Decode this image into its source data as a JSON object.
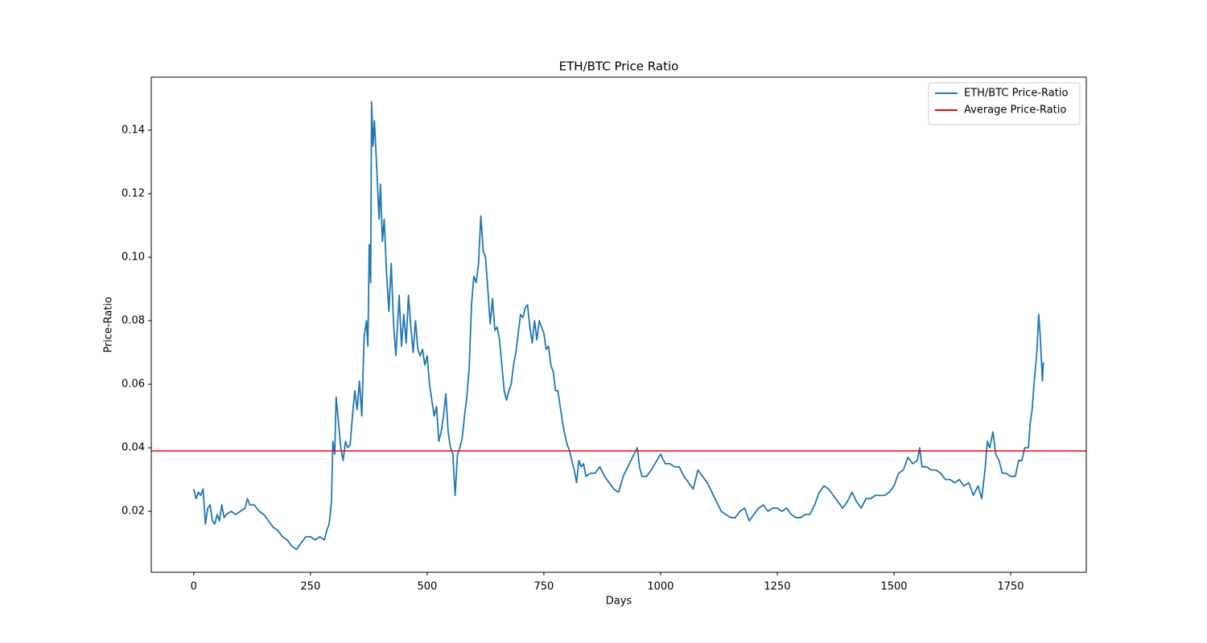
{
  "chart_data": {
    "type": "line",
    "title": "ETH/BTC Price Ratio",
    "x_label": "Days",
    "y_label": "Price-Ratio",
    "xlim": [
      -91,
      1912
    ],
    "ylim": [
      0.0008,
      0.1567
    ],
    "xticks": [
      0,
      250,
      500,
      750,
      1000,
      1250,
      1500,
      1750
    ],
    "yticks": [
      0.02,
      0.04,
      0.06,
      0.08,
      {
        "value": 0.1,
        "label": "0.10"
      },
      0.12,
      0.14
    ],
    "legend": "upper right",
    "series": [
      {
        "name": "ETH/BTC Price-Ratio",
        "color": "#1f77b4",
        "x": [
          0,
          5,
          10,
          15,
          20,
          25,
          30,
          35,
          40,
          45,
          50,
          55,
          60,
          65,
          70,
          80,
          90,
          100,
          110,
          115,
          120,
          130,
          140,
          150,
          160,
          170,
          180,
          190,
          200,
          210,
          220,
          230,
          240,
          250,
          260,
          270,
          280,
          285,
          290,
          295,
          298,
          302,
          305,
          310,
          315,
          320,
          325,
          330,
          335,
          340,
          345,
          350,
          355,
          360,
          365,
          370,
          373,
          376,
          379,
          381,
          384,
          387,
          392,
          397,
          400,
          404,
          408,
          413,
          418,
          423,
          428,
          433,
          440,
          445,
          450,
          455,
          460,
          465,
          470,
          475,
          480,
          485,
          490,
          495,
          500,
          505,
          510,
          515,
          520,
          525,
          530,
          535,
          540,
          545,
          550,
          555,
          560,
          565,
          570,
          575,
          580,
          585,
          590,
          595,
          600,
          605,
          610,
          615,
          620,
          625,
          630,
          635,
          640,
          645,
          650,
          655,
          660,
          665,
          670,
          675,
          680,
          685,
          690,
          695,
          700,
          705,
          710,
          715,
          720,
          725,
          730,
          735,
          740,
          745,
          750,
          755,
          760,
          765,
          770,
          775,
          780,
          785,
          790,
          795,
          800,
          805,
          810,
          815,
          820,
          825,
          830,
          835,
          840,
          850,
          860,
          870,
          880,
          890,
          900,
          910,
          920,
          930,
          940,
          950,
          955,
          960,
          970,
          980,
          1000,
          1010,
          1020,
          1030,
          1040,
          1050,
          1060,
          1070,
          1080,
          1090,
          1100,
          1110,
          1120,
          1130,
          1140,
          1150,
          1160,
          1170,
          1180,
          1190,
          1200,
          1210,
          1220,
          1230,
          1240,
          1250,
          1260,
          1270,
          1280,
          1290,
          1300,
          1310,
          1320,
          1330,
          1340,
          1350,
          1360,
          1370,
          1380,
          1390,
          1400,
          1410,
          1420,
          1430,
          1440,
          1450,
          1460,
          1470,
          1480,
          1490,
          1500,
          1510,
          1520,
          1530,
          1540,
          1550,
          1555,
          1560,
          1570,
          1580,
          1590,
          1600,
          1610,
          1620,
          1630,
          1640,
          1650,
          1660,
          1670,
          1680,
          1688,
          1695,
          1700,
          1705,
          1712,
          1718,
          1725,
          1732,
          1740,
          1750,
          1760,
          1767,
          1774,
          1780,
          1788,
          1792,
          1796,
          1800,
          1803,
          1806,
          1810,
          1813,
          1815,
          1818,
          1820
        ],
        "values": [
          0.027,
          0.024,
          0.026,
          0.025,
          0.027,
          0.016,
          0.021,
          0.022,
          0.017,
          0.016,
          0.019,
          0.017,
          0.022,
          0.018,
          0.019,
          0.02,
          0.019,
          0.02,
          0.021,
          0.024,
          0.022,
          0.022,
          0.02,
          0.019,
          0.017,
          0.015,
          0.014,
          0.012,
          0.011,
          0.009,
          0.008,
          0.01,
          0.012,
          0.012,
          0.011,
          0.012,
          0.011,
          0.014,
          0.016,
          0.023,
          0.042,
          0.038,
          0.056,
          0.048,
          0.04,
          0.036,
          0.042,
          0.04,
          0.041,
          0.05,
          0.058,
          0.052,
          0.061,
          0.05,
          0.075,
          0.08,
          0.072,
          0.104,
          0.092,
          0.149,
          0.135,
          0.143,
          0.128,
          0.112,
          0.123,
          0.105,
          0.112,
          0.095,
          0.083,
          0.098,
          0.079,
          0.069,
          0.088,
          0.072,
          0.082,
          0.073,
          0.088,
          0.078,
          0.07,
          0.08,
          0.071,
          0.069,
          0.071,
          0.066,
          0.069,
          0.06,
          0.055,
          0.05,
          0.053,
          0.042,
          0.045,
          0.05,
          0.057,
          0.045,
          0.04,
          0.038,
          0.025,
          0.038,
          0.04,
          0.043,
          0.05,
          0.056,
          0.065,
          0.085,
          0.094,
          0.092,
          0.098,
          0.113,
          0.102,
          0.1,
          0.09,
          0.079,
          0.087,
          0.077,
          0.078,
          0.074,
          0.066,
          0.058,
          0.055,
          0.058,
          0.06,
          0.066,
          0.07,
          0.076,
          0.082,
          0.081,
          0.084,
          0.085,
          0.078,
          0.073,
          0.08,
          0.074,
          0.08,
          0.078,
          0.076,
          0.071,
          0.072,
          0.066,
          0.064,
          0.058,
          0.058,
          0.053,
          0.048,
          0.044,
          0.041,
          0.039,
          0.036,
          0.033,
          0.029,
          0.036,
          0.034,
          0.035,
          0.031,
          0.032,
          0.032,
          0.034,
          0.031,
          0.029,
          0.027,
          0.026,
          0.031,
          0.034,
          0.037,
          0.04,
          0.034,
          0.031,
          0.031,
          0.033,
          0.038,
          0.035,
          0.035,
          0.034,
          0.034,
          0.031,
          0.029,
          0.027,
          0.033,
          0.031,
          0.029,
          0.026,
          0.023,
          0.02,
          0.019,
          0.018,
          0.018,
          0.02,
          0.021,
          0.017,
          0.019,
          0.021,
          0.022,
          0.02,
          0.021,
          0.021,
          0.02,
          0.021,
          0.019,
          0.018,
          0.018,
          0.019,
          0.019,
          0.022,
          0.026,
          0.028,
          0.027,
          0.025,
          0.023,
          0.021,
          0.023,
          0.026,
          0.023,
          0.021,
          0.024,
          0.024,
          0.025,
          0.025,
          0.025,
          0.026,
          0.028,
          0.032,
          0.033,
          0.037,
          0.035,
          0.036,
          0.04,
          0.034,
          0.034,
          0.033,
          0.033,
          0.032,
          0.03,
          0.03,
          0.029,
          0.03,
          0.028,
          0.029,
          0.025,
          0.028,
          0.024,
          0.033,
          0.042,
          0.04,
          0.045,
          0.038,
          0.036,
          0.032,
          0.032,
          0.031,
          0.031,
          0.036,
          0.036,
          0.04,
          0.04,
          0.048,
          0.052,
          0.06,
          0.065,
          0.07,
          0.082,
          0.076,
          0.07,
          0.061,
          0.067
        ]
      },
      {
        "name": "Average Price-Ratio",
        "color": "#ff0000",
        "type": "hline",
        "value": 0.039
      }
    ]
  }
}
